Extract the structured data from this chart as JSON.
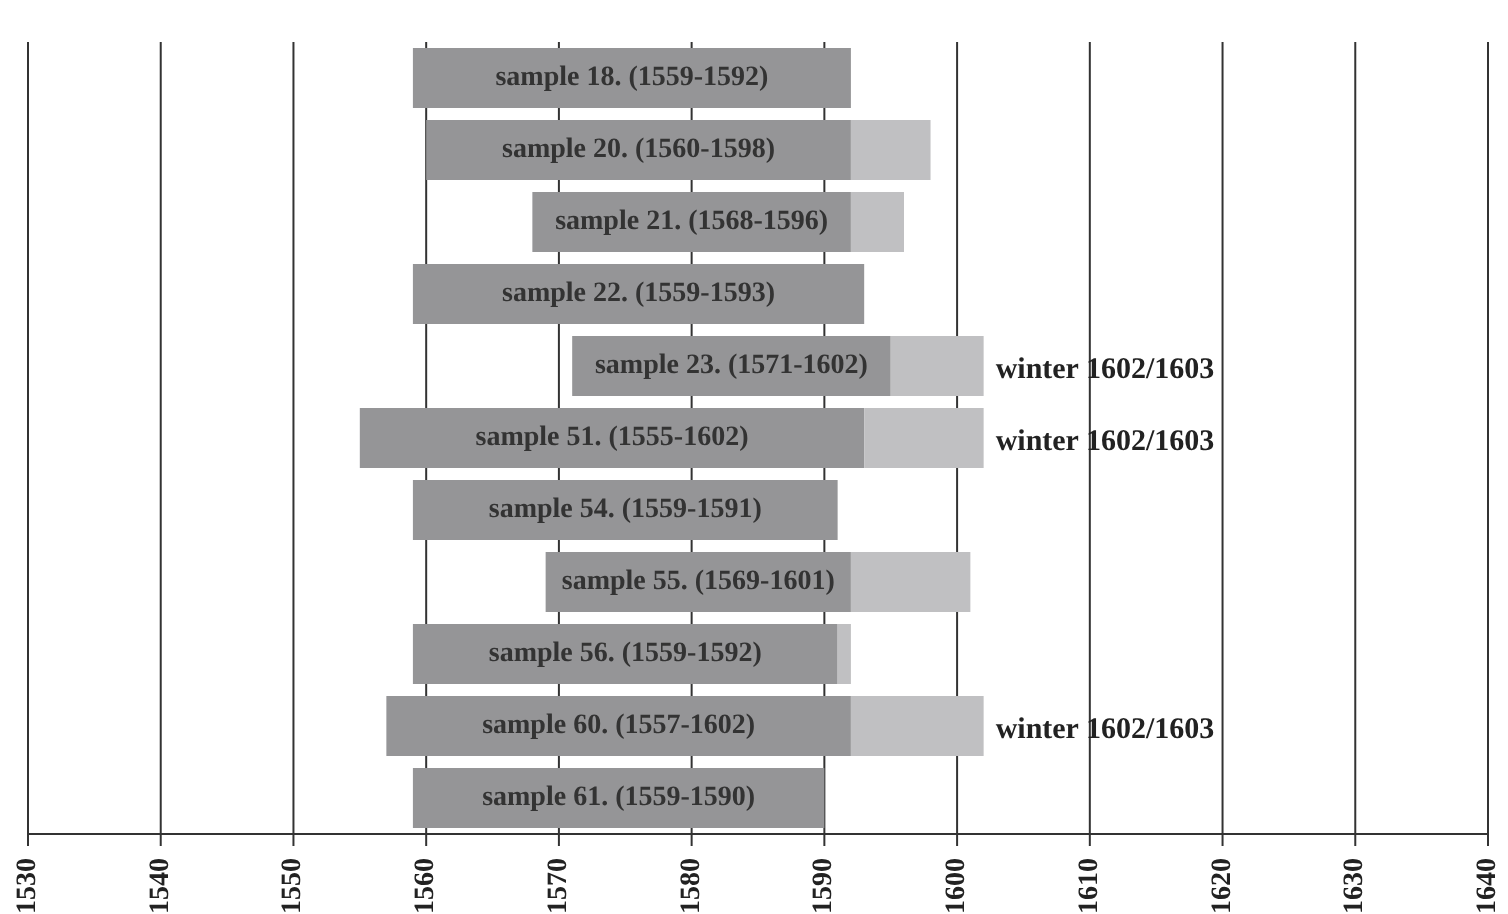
{
  "chart_data": {
    "type": "bar",
    "orientation": "horizontal",
    "categories": [
      "sample 18. (1559-1592)",
      "sample 20. (1560-1598)",
      "sample 21. (1568-1596)",
      "sample 22. (1559-1593)",
      "sample 23. (1571-1602)",
      "sample 51. (1555-1602)",
      "sample 54. (1559-1591)",
      "sample 55. (1569-1601)",
      "sample 56. (1559-1592)",
      "sample 60. (1557-1602)",
      "sample 61. (1559-1590)"
    ],
    "series": [
      {
        "color": "#959597",
        "base": [
          1559,
          1560,
          1568,
          1559,
          1571,
          1555,
          1559,
          1569,
          1559,
          1557,
          1559
        ],
        "values": [
          33,
          32,
          24,
          34,
          24,
          38,
          32,
          23,
          32,
          35,
          31
        ]
      },
      {
        "color": "#c0c0c2",
        "base": [
          null,
          1592,
          1592,
          null,
          1595,
          1593,
          null,
          1592,
          1591,
          1592,
          null
        ],
        "values": [
          null,
          6,
          4,
          null,
          7,
          9,
          null,
          9,
          1,
          10,
          null
        ]
      }
    ],
    "xlim": [
      1530,
      1640
    ],
    "xticks": [
      1530,
      1540,
      1550,
      1560,
      1570,
      1580,
      1590,
      1600,
      1610,
      1620,
      1630,
      1640
    ],
    "grid": "x",
    "tick_labels": "x",
    "annotations": [
      "winter 1602/1603",
      "winter 1602/1603",
      "winter 1602/1603"
    ]
  }
}
